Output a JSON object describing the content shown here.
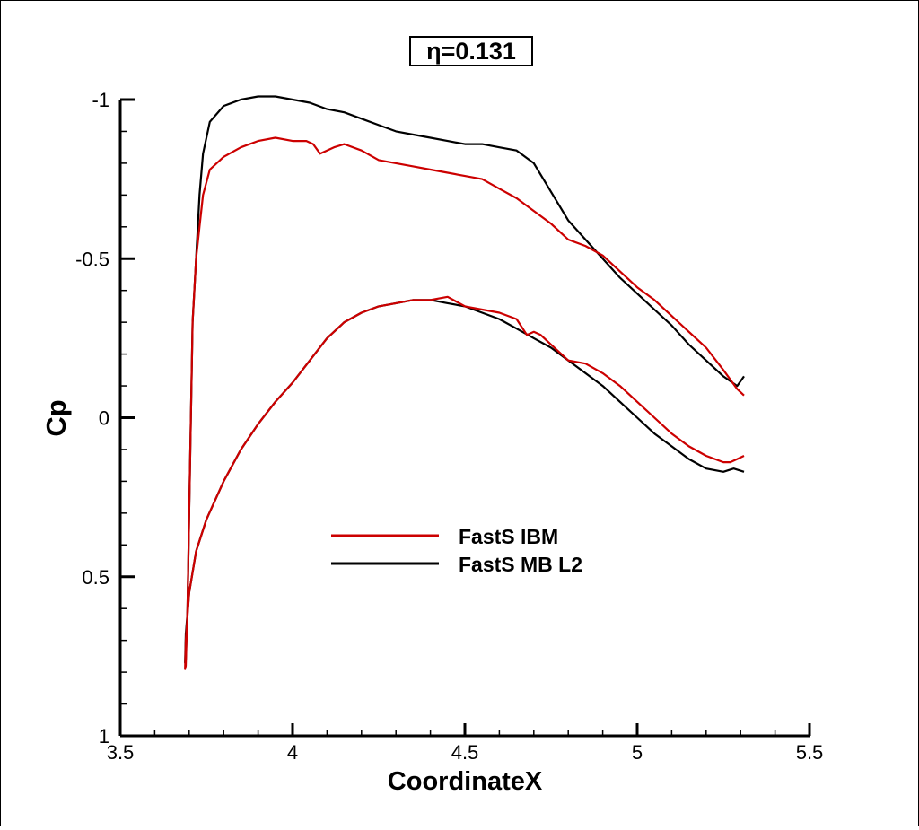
{
  "chart_data": {
    "type": "line",
    "title": "η=0.131",
    "xlabel": "CoordinateX",
    "ylabel": "Cp",
    "xlim": [
      3.5,
      5.5
    ],
    "ylim": [
      1,
      -1
    ],
    "y_inverted": true,
    "grid": false,
    "legend_position": "center",
    "x_ticks": [
      "3.5",
      "4",
      "4.5",
      "5",
      "5.5"
    ],
    "y_ticks": [
      "-1",
      "-0.5",
      "0",
      "0.5",
      "1"
    ],
    "series": [
      {
        "name": "FastS IBM",
        "color": "#cc0000",
        "x": [
          5.31,
          5.29,
          5.25,
          5.2,
          5.15,
          5.1,
          5.05,
          5.0,
          4.95,
          4.9,
          4.85,
          4.8,
          4.78,
          4.75,
          4.7,
          4.65,
          4.6,
          4.55,
          4.5,
          4.45,
          4.4,
          4.35,
          4.3,
          4.25,
          4.2,
          4.15,
          4.12,
          4.1,
          4.08,
          4.06,
          4.04,
          4.0,
          3.95,
          3.9,
          3.85,
          3.8,
          3.76,
          3.74,
          3.73,
          3.72,
          3.71,
          3.705,
          3.7,
          3.695,
          3.69,
          3.688,
          3.69,
          3.7,
          3.72,
          3.75,
          3.8,
          3.85,
          3.9,
          3.95,
          4.0,
          4.05,
          4.1,
          4.15,
          4.2,
          4.25,
          4.3,
          4.35,
          4.4,
          4.45,
          4.5,
          4.55,
          4.6,
          4.65,
          4.68,
          4.7,
          4.72,
          4.75,
          4.8,
          4.85,
          4.9,
          4.95,
          5.0,
          5.05,
          5.1,
          5.15,
          5.2,
          5.25,
          5.27,
          5.29,
          5.31
        ],
        "y": [
          -0.07,
          -0.09,
          -0.15,
          -0.22,
          -0.27,
          -0.32,
          -0.37,
          -0.41,
          -0.46,
          -0.51,
          -0.54,
          -0.56,
          -0.58,
          -0.61,
          -0.65,
          -0.69,
          -0.72,
          -0.75,
          -0.76,
          -0.77,
          -0.78,
          -0.79,
          -0.8,
          -0.81,
          -0.84,
          -0.86,
          -0.85,
          -0.84,
          -0.83,
          -0.86,
          -0.87,
          -0.87,
          -0.88,
          -0.87,
          -0.85,
          -0.82,
          -0.78,
          -0.7,
          -0.6,
          -0.5,
          -0.3,
          0.0,
          0.3,
          0.6,
          0.78,
          0.79,
          0.7,
          0.55,
          0.42,
          0.32,
          0.2,
          0.1,
          0.02,
          -0.05,
          -0.11,
          -0.18,
          -0.25,
          -0.3,
          -0.33,
          -0.35,
          -0.36,
          -0.37,
          -0.37,
          -0.38,
          -0.35,
          -0.34,
          -0.33,
          -0.31,
          -0.26,
          -0.27,
          -0.26,
          -0.23,
          -0.18,
          -0.17,
          -0.14,
          -0.1,
          -0.05,
          0.0,
          0.05,
          0.09,
          0.12,
          0.14,
          0.14,
          0.13,
          0.12
        ]
      },
      {
        "name": "FastS MB L2",
        "color": "#000000",
        "x": [
          5.31,
          5.29,
          5.25,
          5.2,
          5.15,
          5.1,
          5.05,
          5.0,
          4.95,
          4.9,
          4.85,
          4.8,
          4.75,
          4.7,
          4.65,
          4.6,
          4.55,
          4.5,
          4.45,
          4.4,
          4.35,
          4.3,
          4.25,
          4.2,
          4.15,
          4.1,
          4.05,
          4.0,
          3.95,
          3.9,
          3.85,
          3.8,
          3.76,
          3.74,
          3.73,
          3.72,
          3.71,
          3.705,
          3.7,
          3.695,
          3.69,
          3.688,
          3.69,
          3.7,
          3.72,
          3.75,
          3.8,
          3.85,
          3.9,
          3.95,
          4.0,
          4.05,
          4.1,
          4.15,
          4.2,
          4.25,
          4.3,
          4.35,
          4.4,
          4.45,
          4.5,
          4.55,
          4.6,
          4.65,
          4.7,
          4.75,
          4.8,
          4.85,
          4.9,
          4.95,
          5.0,
          5.05,
          5.1,
          5.15,
          5.2,
          5.25,
          5.28,
          5.31
        ],
        "y": [
          -0.13,
          -0.1,
          -0.13,
          -0.18,
          -0.23,
          -0.29,
          -0.34,
          -0.39,
          -0.44,
          -0.5,
          -0.56,
          -0.62,
          -0.71,
          -0.8,
          -0.84,
          -0.85,
          -0.86,
          -0.86,
          -0.87,
          -0.88,
          -0.89,
          -0.9,
          -0.92,
          -0.94,
          -0.96,
          -0.97,
          -0.99,
          -1.0,
          -1.01,
          -1.01,
          -1.0,
          -0.98,
          -0.93,
          -0.83,
          -0.7,
          -0.5,
          -0.3,
          0.0,
          0.3,
          0.6,
          0.76,
          0.77,
          0.68,
          0.55,
          0.42,
          0.32,
          0.2,
          0.1,
          0.02,
          -0.05,
          -0.11,
          -0.18,
          -0.25,
          -0.3,
          -0.33,
          -0.35,
          -0.36,
          -0.37,
          -0.37,
          -0.36,
          -0.35,
          -0.33,
          -0.31,
          -0.28,
          -0.25,
          -0.22,
          -0.18,
          -0.14,
          -0.1,
          -0.05,
          0.0,
          0.05,
          0.09,
          0.13,
          0.16,
          0.17,
          0.16,
          0.17
        ]
      }
    ]
  }
}
